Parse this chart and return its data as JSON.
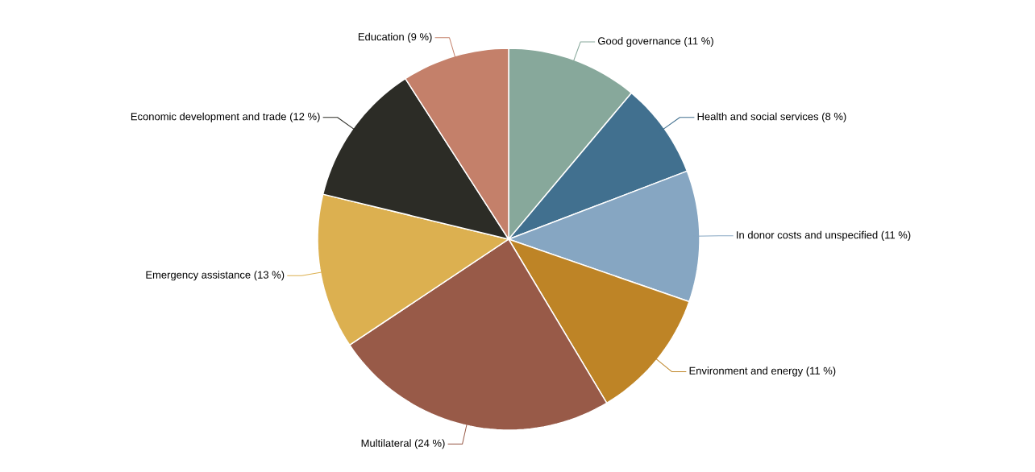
{
  "chart_data": {
    "type": "pie",
    "categories": [
      "Good governance",
      "Health and social services",
      "In donor costs and unspecified",
      "Environment and energy",
      "Multilateral",
      "Emergency assistance",
      "Economic development and trade",
      "Education"
    ],
    "values": [
      11,
      8,
      11,
      11,
      24,
      13,
      12,
      9
    ],
    "value_labels": [
      "(11 %)",
      "(8 %)",
      "(11 %)",
      "(11 %)",
      "(24 %)",
      "(13 %)",
      "(12 %)",
      "(9 %)"
    ],
    "colors": [
      "#87a89b",
      "#41708f",
      "#86a6c2",
      "#be8426",
      "#985a48",
      "#dcb050",
      "#2c2c26",
      "#c4806a"
    ]
  }
}
